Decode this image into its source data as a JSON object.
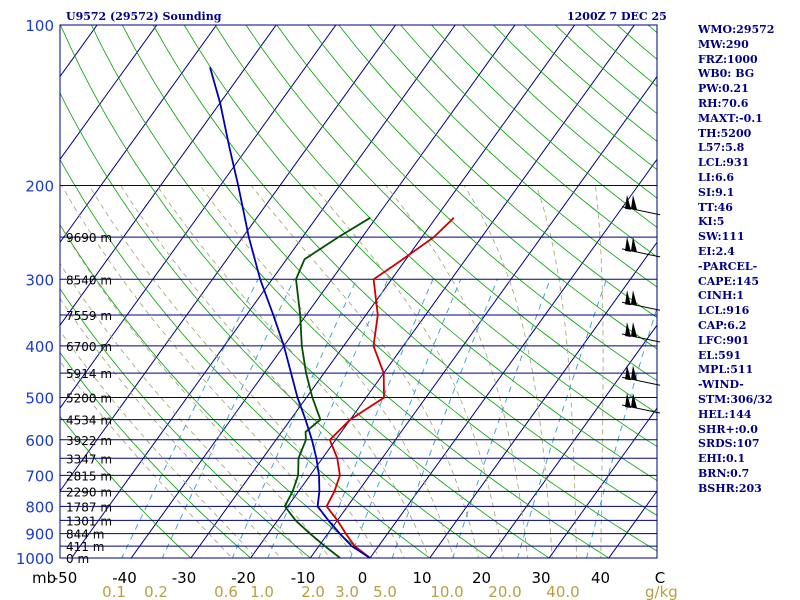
{
  "header": {
    "station": "U9572 (29572) Sounding",
    "time": "1200Z  7 DEC 25"
  },
  "colors": {
    "isobar": "#000080",
    "isotherm": "#000080",
    "dry_adiabat": "#00a000",
    "moist_adiabat": "#a0a070",
    "mixing_ratio": "#30a0c0",
    "temperature": "#cc0000",
    "dewpoint": "#005000",
    "parcel": "#0000b0",
    "wind": "#000000",
    "pressure_text": "#1a3cc8",
    "mixing_text": "#b8a040"
  },
  "indices": [
    "WMO:29572",
    "MW:290",
    "FRZ:1000",
    "WB0: BG",
    "PW:0.21",
    "RH:70.6",
    "MAXT:-0.1",
    "TH:5200",
    "L57:5.8",
    "LCL:931",
    "LI:6.6",
    "SI:9.1",
    "TT:46",
    "KI:5",
    "SW:111",
    "EI:2.4",
    "-PARCEL-",
    "CAPE:145",
    "CINH:1",
    "LCL:916",
    "CAP:6.2",
    "LFC:901",
    "EL:591",
    "MPL:511",
    "-WIND-",
    "STM:306/32",
    "HEL:144",
    "SHR+:0.0",
    "SRDS:107",
    "EHI:0.1",
    "BRN:0.7",
    "BSHR:203"
  ],
  "chart_data": {
    "type": "line",
    "diagram": "skew-T log-P",
    "xlabel": "C",
    "ylabel": "mb",
    "xlim": [
      -50,
      50
    ],
    "ylim": [
      1000,
      100
    ],
    "y_log": true,
    "pressure_ticks": [
      100,
      200,
      300,
      400,
      500,
      600,
      700,
      800,
      900,
      1000
    ],
    "temperature_ticks": [
      "-50",
      "-40",
      "-30",
      "-20",
      "-10",
      "0",
      "10",
      "20",
      "30",
      "40",
      "C"
    ],
    "mixing_ratio_label_unit": "g/kg",
    "mixing_ratio_ticks": [
      "0.1",
      "0.2",
      "0.6",
      "1.0",
      "2.0",
      "3.0",
      "5.0",
      "10.0",
      "20.0",
      "40.0"
    ],
    "heights": [
      {
        "label": "9690 m",
        "p": 250
      },
      {
        "label": "8540 m",
        "p": 300
      },
      {
        "label": "7559 m",
        "p": 350
      },
      {
        "label": "6700 m",
        "p": 400
      },
      {
        "label": "5914 m",
        "p": 450
      },
      {
        "label": "5200 m",
        "p": 500
      },
      {
        "label": "4534 m",
        "p": 550
      },
      {
        "label": "3922 m",
        "p": 600
      },
      {
        "label": "3347 m",
        "p": 650
      },
      {
        "label": "2815 m",
        "p": 700
      },
      {
        "label": "2290 m",
        "p": 750
      },
      {
        "label": "1787 m",
        "p": 800
      },
      {
        "label": "1301 m",
        "p": 850
      },
      {
        "label": "844 m",
        "p": 900
      },
      {
        "label": "411 m",
        "p": 950
      },
      {
        "label": "0 m",
        "p": 1000
      }
    ],
    "series": [
      {
        "key": "temperature",
        "points": [
          [
            1000,
            0
          ],
          [
            950,
            -4
          ],
          [
            900,
            -7
          ],
          [
            850,
            -10
          ],
          [
            800,
            -13.5
          ],
          [
            750,
            -14
          ],
          [
            700,
            -15
          ],
          [
            650,
            -17.5
          ],
          [
            600,
            -21
          ],
          [
            550,
            -20
          ],
          [
            500,
            -17
          ],
          [
            450,
            -20
          ],
          [
            400,
            -25
          ],
          [
            350,
            -28
          ],
          [
            300,
            -33
          ],
          [
            280,
            -31
          ],
          [
            250,
            -28
          ],
          [
            230,
            -27
          ]
        ]
      },
      {
        "key": "dewpoint",
        "points": [
          [
            1000,
            -5
          ],
          [
            950,
            -9
          ],
          [
            900,
            -13
          ],
          [
            850,
            -17
          ],
          [
            800,
            -20.5
          ],
          [
            750,
            -21
          ],
          [
            700,
            -22
          ],
          [
            650,
            -24
          ],
          [
            600,
            -25
          ],
          [
            580,
            -26
          ],
          [
            550,
            -25
          ],
          [
            500,
            -29
          ],
          [
            450,
            -33
          ],
          [
            400,
            -37
          ],
          [
            350,
            -41
          ],
          [
            300,
            -46
          ],
          [
            275,
            -47
          ],
          [
            250,
            -44
          ],
          [
            230,
            -41
          ]
        ]
      },
      {
        "key": "parcel",
        "points": [
          [
            1000,
            0
          ],
          [
            950,
            -4.5
          ],
          [
            900,
            -8
          ],
          [
            850,
            -11.5
          ],
          [
            800,
            -15
          ],
          [
            750,
            -16.5
          ],
          [
            700,
            -18.5
          ],
          [
            650,
            -21
          ],
          [
            600,
            -24
          ],
          [
            550,
            -27.5
          ],
          [
            500,
            -31.5
          ],
          [
            450,
            -35.5
          ],
          [
            400,
            -40
          ],
          [
            350,
            -45.5
          ],
          [
            300,
            -52
          ],
          [
            250,
            -59
          ],
          [
            200,
            -67
          ],
          [
            170,
            -73
          ],
          [
            140,
            -80
          ],
          [
            120,
            -86
          ]
        ]
      }
    ],
    "wind_barbs_p": [
      225,
      270,
      340,
      390,
      470,
      530
    ],
    "wind_barbs_label": "wind barbs (flags)"
  }
}
